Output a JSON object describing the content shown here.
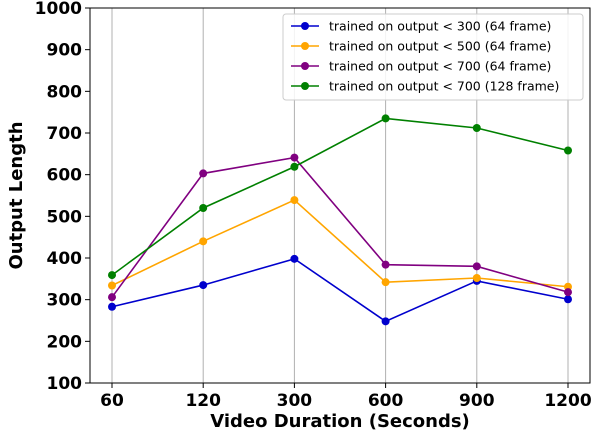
{
  "chart_data": {
    "type": "line",
    "categories": [
      "60",
      "120",
      "300",
      "600",
      "900",
      "1200"
    ],
    "xlabel": "Video Duration (Seconds)",
    "ylabel": "Output Length",
    "ylim": [
      100,
      1000
    ],
    "yticks": [
      100,
      200,
      300,
      400,
      500,
      600,
      700,
      800,
      900,
      1000
    ],
    "grid": "vertical",
    "legend_position": "top-right",
    "series": [
      {
        "name": "trained on output < 300 (64 frame)",
        "color": "#0000cd",
        "values": [
          283,
          335,
          398,
          248,
          345,
          301
        ]
      },
      {
        "name": "trained on output < 500 (64 frame)",
        "color": "#ffa500",
        "values": [
          334,
          440,
          539,
          342,
          352,
          331
        ]
      },
      {
        "name": "trained on output < 700 (64 frame)",
        "color": "#800080",
        "values": [
          306,
          603,
          641,
          384,
          380,
          318
        ]
      },
      {
        "name": "trained on output < 700 (128 frame)",
        "color": "#008000",
        "values": [
          359,
          520,
          619,
          735,
          712,
          658
        ]
      }
    ]
  }
}
